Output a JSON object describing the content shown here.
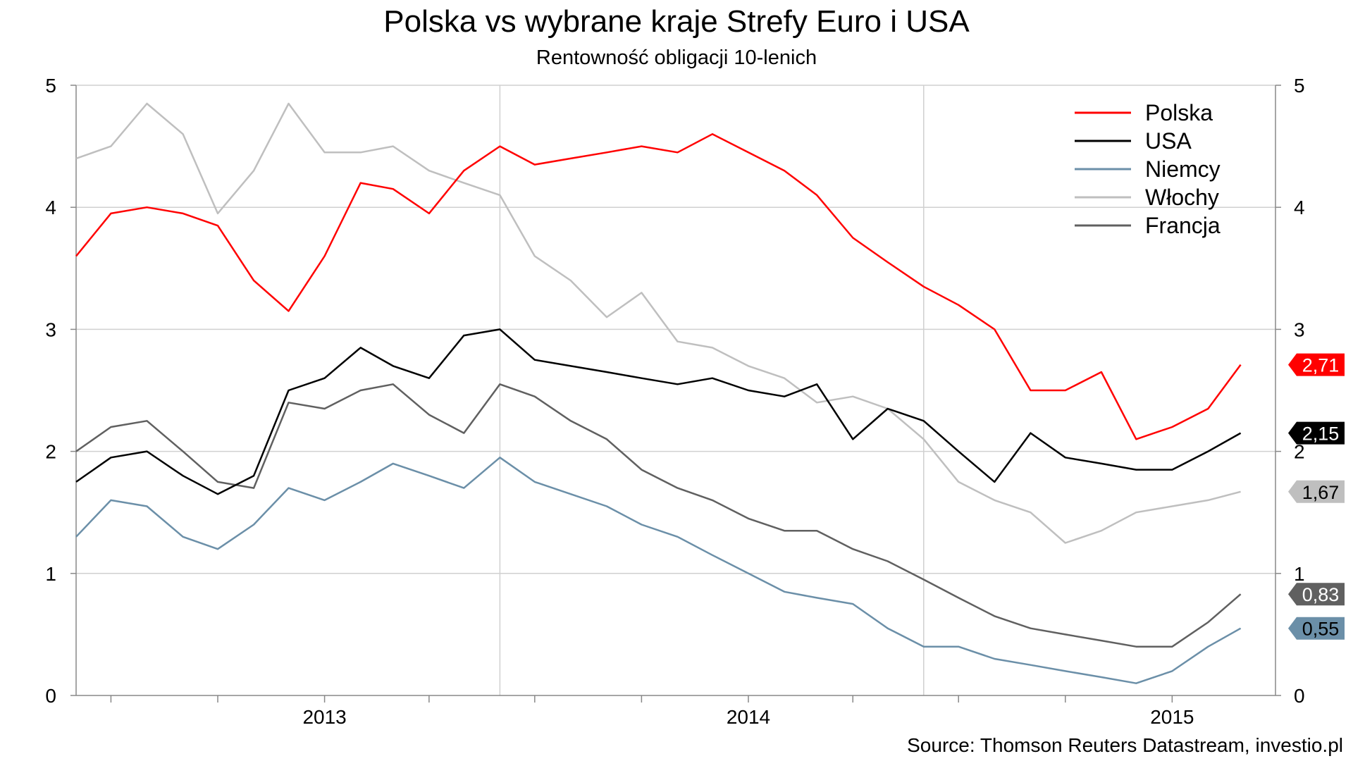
{
  "chart_data": {
    "type": "line",
    "title": "Polska vs wybrane kraje Strefy Euro i USA",
    "subtitle": "Rentowność obligacji 10-lenich",
    "source": "Source: Thomson Reuters Datastream, investio.pl",
    "y_ticks_left": [
      "0",
      "1",
      "2",
      "3",
      "4",
      "5"
    ],
    "y_ticks_right": [
      "0",
      "1",
      "2",
      "3",
      "4",
      "5"
    ],
    "x_tick_labels": [
      "2013",
      "2014",
      "2015"
    ],
    "ylim": [
      0,
      5
    ],
    "xlim": [
      "2012-06-01",
      "2015-03-31"
    ],
    "grid": true,
    "legend_position": "top-right",
    "x": [
      "2012-06-01",
      "2012-07-01",
      "2012-08-01",
      "2012-09-01",
      "2012-10-01",
      "2012-11-01",
      "2012-12-01",
      "2013-01-01",
      "2013-02-01",
      "2013-03-01",
      "2013-04-01",
      "2013-05-01",
      "2013-06-01",
      "2013-07-01",
      "2013-08-01",
      "2013-09-01",
      "2013-10-01",
      "2013-11-01",
      "2013-12-01",
      "2014-01-01",
      "2014-02-01",
      "2014-03-01",
      "2014-04-01",
      "2014-05-01",
      "2014-06-01",
      "2014-07-01",
      "2014-08-01",
      "2014-09-01",
      "2014-10-01",
      "2014-11-01",
      "2014-12-01",
      "2015-01-01",
      "2015-02-01",
      "2015-03-01"
    ],
    "series": [
      {
        "name": "Polska",
        "color": "#ff0000",
        "values": [
          3.6,
          3.95,
          4.0,
          3.95,
          3.85,
          3.4,
          3.15,
          3.6,
          4.2,
          4.15,
          3.95,
          4.3,
          4.5,
          4.35,
          4.4,
          4.45,
          4.5,
          4.45,
          4.6,
          4.45,
          4.3,
          4.1,
          3.75,
          3.55,
          3.35,
          3.2,
          3.0,
          2.5,
          2.5,
          2.65,
          2.1,
          2.2,
          2.35,
          2.71
        ],
        "end_label": "2,71"
      },
      {
        "name": "USA",
        "color": "#000000",
        "values": [
          1.75,
          1.95,
          2.0,
          1.8,
          1.65,
          1.8,
          2.5,
          2.6,
          2.85,
          2.7,
          2.6,
          2.95,
          3.0,
          2.75,
          2.7,
          2.65,
          2.6,
          2.55,
          2.6,
          2.5,
          2.45,
          2.55,
          2.1,
          2.35,
          2.25,
          2.0,
          1.75,
          2.15,
          1.95,
          1.9,
          1.85,
          1.85,
          2.0,
          2.15
        ],
        "end_label": "2,15"
      },
      {
        "name": "Niemcy",
        "color": "#6b8fa8",
        "values": [
          1.3,
          1.6,
          1.55,
          1.3,
          1.2,
          1.4,
          1.7,
          1.6,
          1.75,
          1.9,
          1.8,
          1.7,
          1.95,
          1.75,
          1.65,
          1.55,
          1.4,
          1.3,
          1.15,
          1.0,
          0.85,
          0.8,
          0.75,
          0.55,
          0.4,
          0.4,
          0.3,
          0.25,
          0.2,
          0.15,
          0.1,
          0.2,
          0.4,
          0.55
        ],
        "end_label": "0,55"
      },
      {
        "name": "Włochy",
        "color": "#bfbfbf",
        "values": [
          4.4,
          4.5,
          4.85,
          4.6,
          3.95,
          4.3,
          4.85,
          4.45,
          4.45,
          4.5,
          4.3,
          4.2,
          4.1,
          3.6,
          3.4,
          3.1,
          3.3,
          2.9,
          2.85,
          2.7,
          2.6,
          2.4,
          2.45,
          2.35,
          2.1,
          1.75,
          1.6,
          1.5,
          1.25,
          1.35,
          1.5,
          1.55,
          1.6,
          1.67
        ],
        "end_label": "1,67"
      },
      {
        "name": "Francja",
        "color": "#606060",
        "values": [
          2.0,
          2.2,
          2.25,
          2.0,
          1.75,
          1.7,
          2.4,
          2.35,
          2.5,
          2.55,
          2.3,
          2.15,
          2.55,
          2.45,
          2.25,
          2.1,
          1.85,
          1.7,
          1.6,
          1.45,
          1.35,
          1.35,
          1.2,
          1.1,
          0.95,
          0.8,
          0.65,
          0.55,
          0.5,
          0.45,
          0.4,
          0.4,
          0.6,
          0.83
        ],
        "end_label": "0,83"
      }
    ]
  }
}
